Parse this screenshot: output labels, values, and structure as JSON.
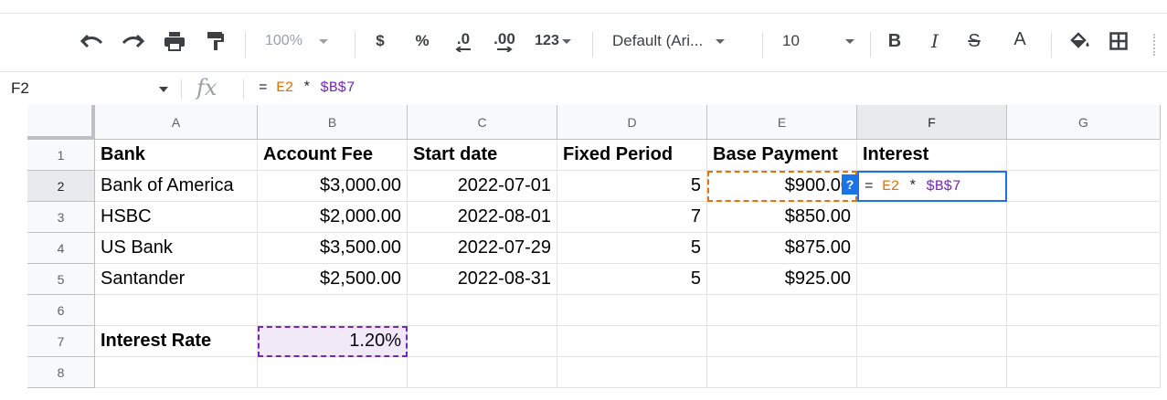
{
  "toolbar": {
    "zoom": "100%",
    "currency_symbol": "$",
    "percent_symbol": "%",
    "decrease_decimal": ".0",
    "increase_decimal": ".00",
    "number_format": "123",
    "font_family": "Default (Ari...",
    "font_size": "10",
    "bold": "B",
    "italic": "I",
    "strikethrough": "S",
    "text_color": "A",
    "text_color_hex": "#000000"
  },
  "formula_bar": {
    "name_box": "F2",
    "fx_label": "fx",
    "formula_prefix": "= ",
    "formula_ref1": "E2",
    "formula_op": " * ",
    "formula_ref2": "$B$7"
  },
  "sheet": {
    "column_headers": [
      "A",
      "B",
      "C",
      "D",
      "E",
      "F",
      "G"
    ],
    "row_headers": [
      "1",
      "2",
      "3",
      "4",
      "5",
      "6",
      "7",
      "8"
    ],
    "rows": [
      [
        "Bank",
        "Account Fee",
        "Start date",
        "Fixed Period",
        "Base Payment",
        "Interest",
        ""
      ],
      [
        "Bank of America",
        "$3,000.00",
        "2022-07-01",
        "5",
        "$900.00",
        "",
        ""
      ],
      [
        "HSBC",
        "$2,000.00",
        "2022-08-01",
        "7",
        "$850.00",
        "",
        ""
      ],
      [
        "US Bank",
        "$3,500.00",
        "2022-07-29",
        "5",
        "$875.00",
        "",
        ""
      ],
      [
        "Santander",
        "$2,500.00",
        "2022-08-31",
        "5",
        "$925.00",
        "",
        ""
      ],
      [
        "",
        "",
        "",
        "",
        "",
        "",
        ""
      ],
      [
        "Interest Rate",
        "1.20%",
        "",
        "",
        "",
        "",
        ""
      ],
      [
        "",
        "",
        "",
        "",
        "",
        "",
        ""
      ]
    ],
    "active_cell": "F2",
    "help_badge": "?"
  },
  "colors": {
    "selection": "#1a73e8",
    "ref_orange": "#e8710a",
    "ref_purple": "#7627bb"
  }
}
